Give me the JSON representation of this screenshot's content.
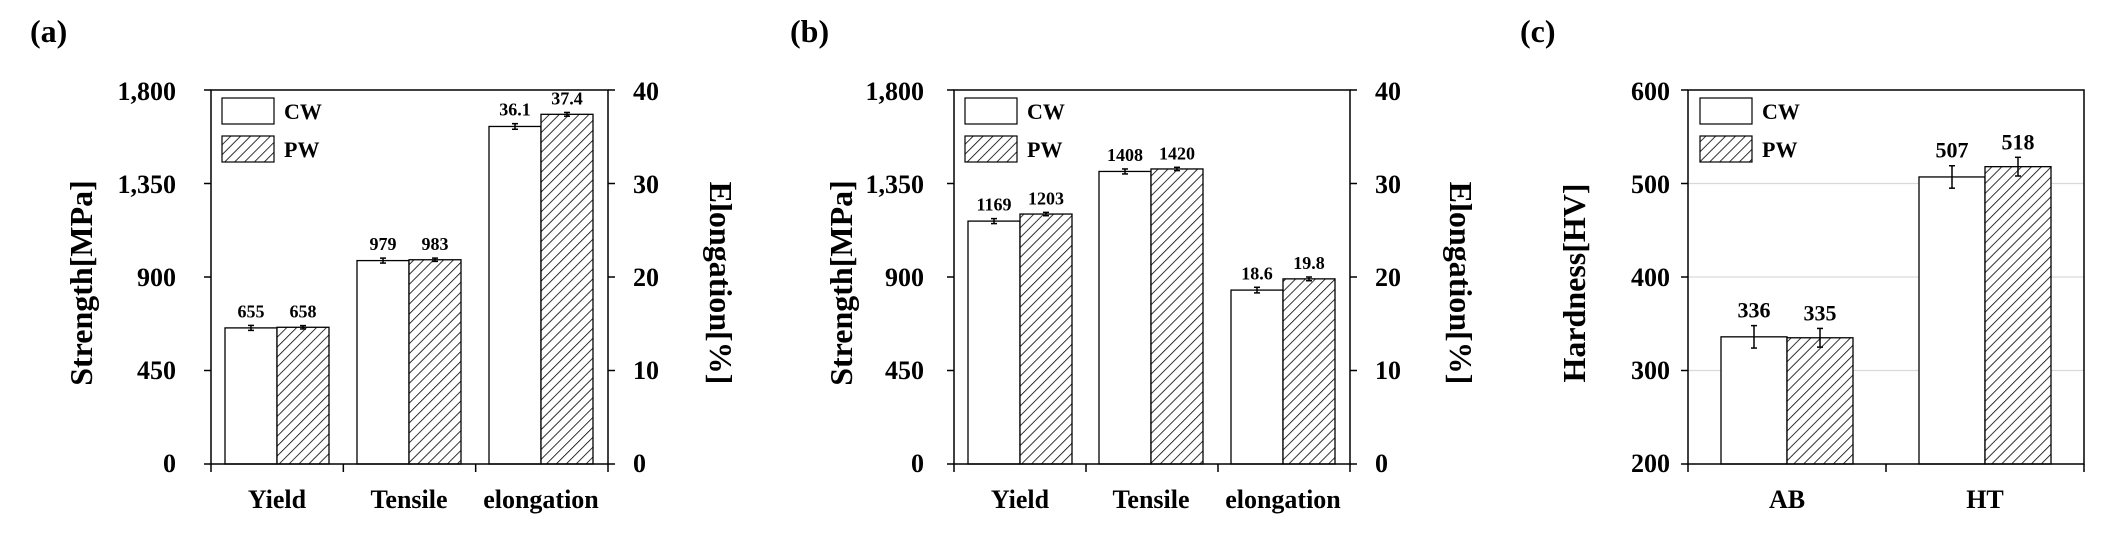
{
  "chart_data": [
    {
      "panel_label": "(a)",
      "type": "bar",
      "categories": [
        "Yield",
        "Tensile",
        "elongation"
      ],
      "series": [
        {
          "name": "CW",
          "values": [
            655,
            979,
            36.1
          ],
          "errors": [
            12,
            12,
            0.3
          ]
        },
        {
          "name": "PW",
          "values": [
            658,
            983,
            37.4
          ],
          "errors": [
            8,
            8,
            0.2
          ]
        }
      ],
      "value_labels": [
        [
          "655",
          "979",
          "36.1"
        ],
        [
          "658",
          "983",
          "37.4"
        ]
      ],
      "axis_assignment": [
        "left",
        "left",
        "right"
      ],
      "ylabel": "Strength[MPa]",
      "ylim": [
        0,
        1800
      ],
      "yticks": [
        "0",
        "450",
        "900",
        "1,350",
        "1,800"
      ],
      "y2label": "Elongation[%]",
      "y2lim": [
        0,
        40
      ],
      "y2ticks": [
        "0",
        "10",
        "20",
        "30",
        "40"
      ],
      "legend": "top-left",
      "grid": false
    },
    {
      "panel_label": "(b)",
      "type": "bar",
      "categories": [
        "Yield",
        "Tensile",
        "elongation"
      ],
      "series": [
        {
          "name": "CW",
          "values": [
            1169,
            1408,
            18.6
          ],
          "errors": [
            12,
            12,
            0.3
          ]
        },
        {
          "name": "PW",
          "values": [
            1203,
            1420,
            19.8
          ],
          "errors": [
            8,
            8,
            0.2
          ]
        }
      ],
      "value_labels": [
        [
          "1169",
          "1408",
          "18.6"
        ],
        [
          "1203",
          "1420",
          "19.8"
        ]
      ],
      "axis_assignment": [
        "left",
        "left",
        "right"
      ],
      "ylabel": "Strength[MPa]",
      "ylim": [
        0,
        1800
      ],
      "yticks": [
        "0",
        "450",
        "900",
        "1,350",
        "1,800"
      ],
      "y2label": "Elongation[%]",
      "y2lim": [
        0,
        40
      ],
      "y2ticks": [
        "0",
        "10",
        "20",
        "30",
        "40"
      ],
      "legend": "top-left",
      "grid": false
    },
    {
      "panel_label": "(c)",
      "type": "bar",
      "categories": [
        "AB",
        "HT"
      ],
      "series": [
        {
          "name": "CW",
          "values": [
            336,
            507
          ],
          "errors": [
            12,
            12
          ]
        },
        {
          "name": "PW",
          "values": [
            335,
            518
          ],
          "errors": [
            10,
            10
          ]
        }
      ],
      "value_labels": [
        [
          "336",
          "507"
        ],
        [
          "335",
          "518"
        ]
      ],
      "axis_assignment": [
        "left",
        "left"
      ],
      "ylabel": "Hardness[HV]",
      "ylim": [
        200,
        600
      ],
      "yticks": [
        "200",
        "300",
        "400",
        "500",
        "600"
      ],
      "legend": "top-left",
      "grid": true,
      "grid_color": "#d9d9d9"
    }
  ],
  "colors": {
    "cw_fill": "#ffffff",
    "pw_hatch": "#000000",
    "axis": "#000000",
    "error_bar": "#000000"
  }
}
